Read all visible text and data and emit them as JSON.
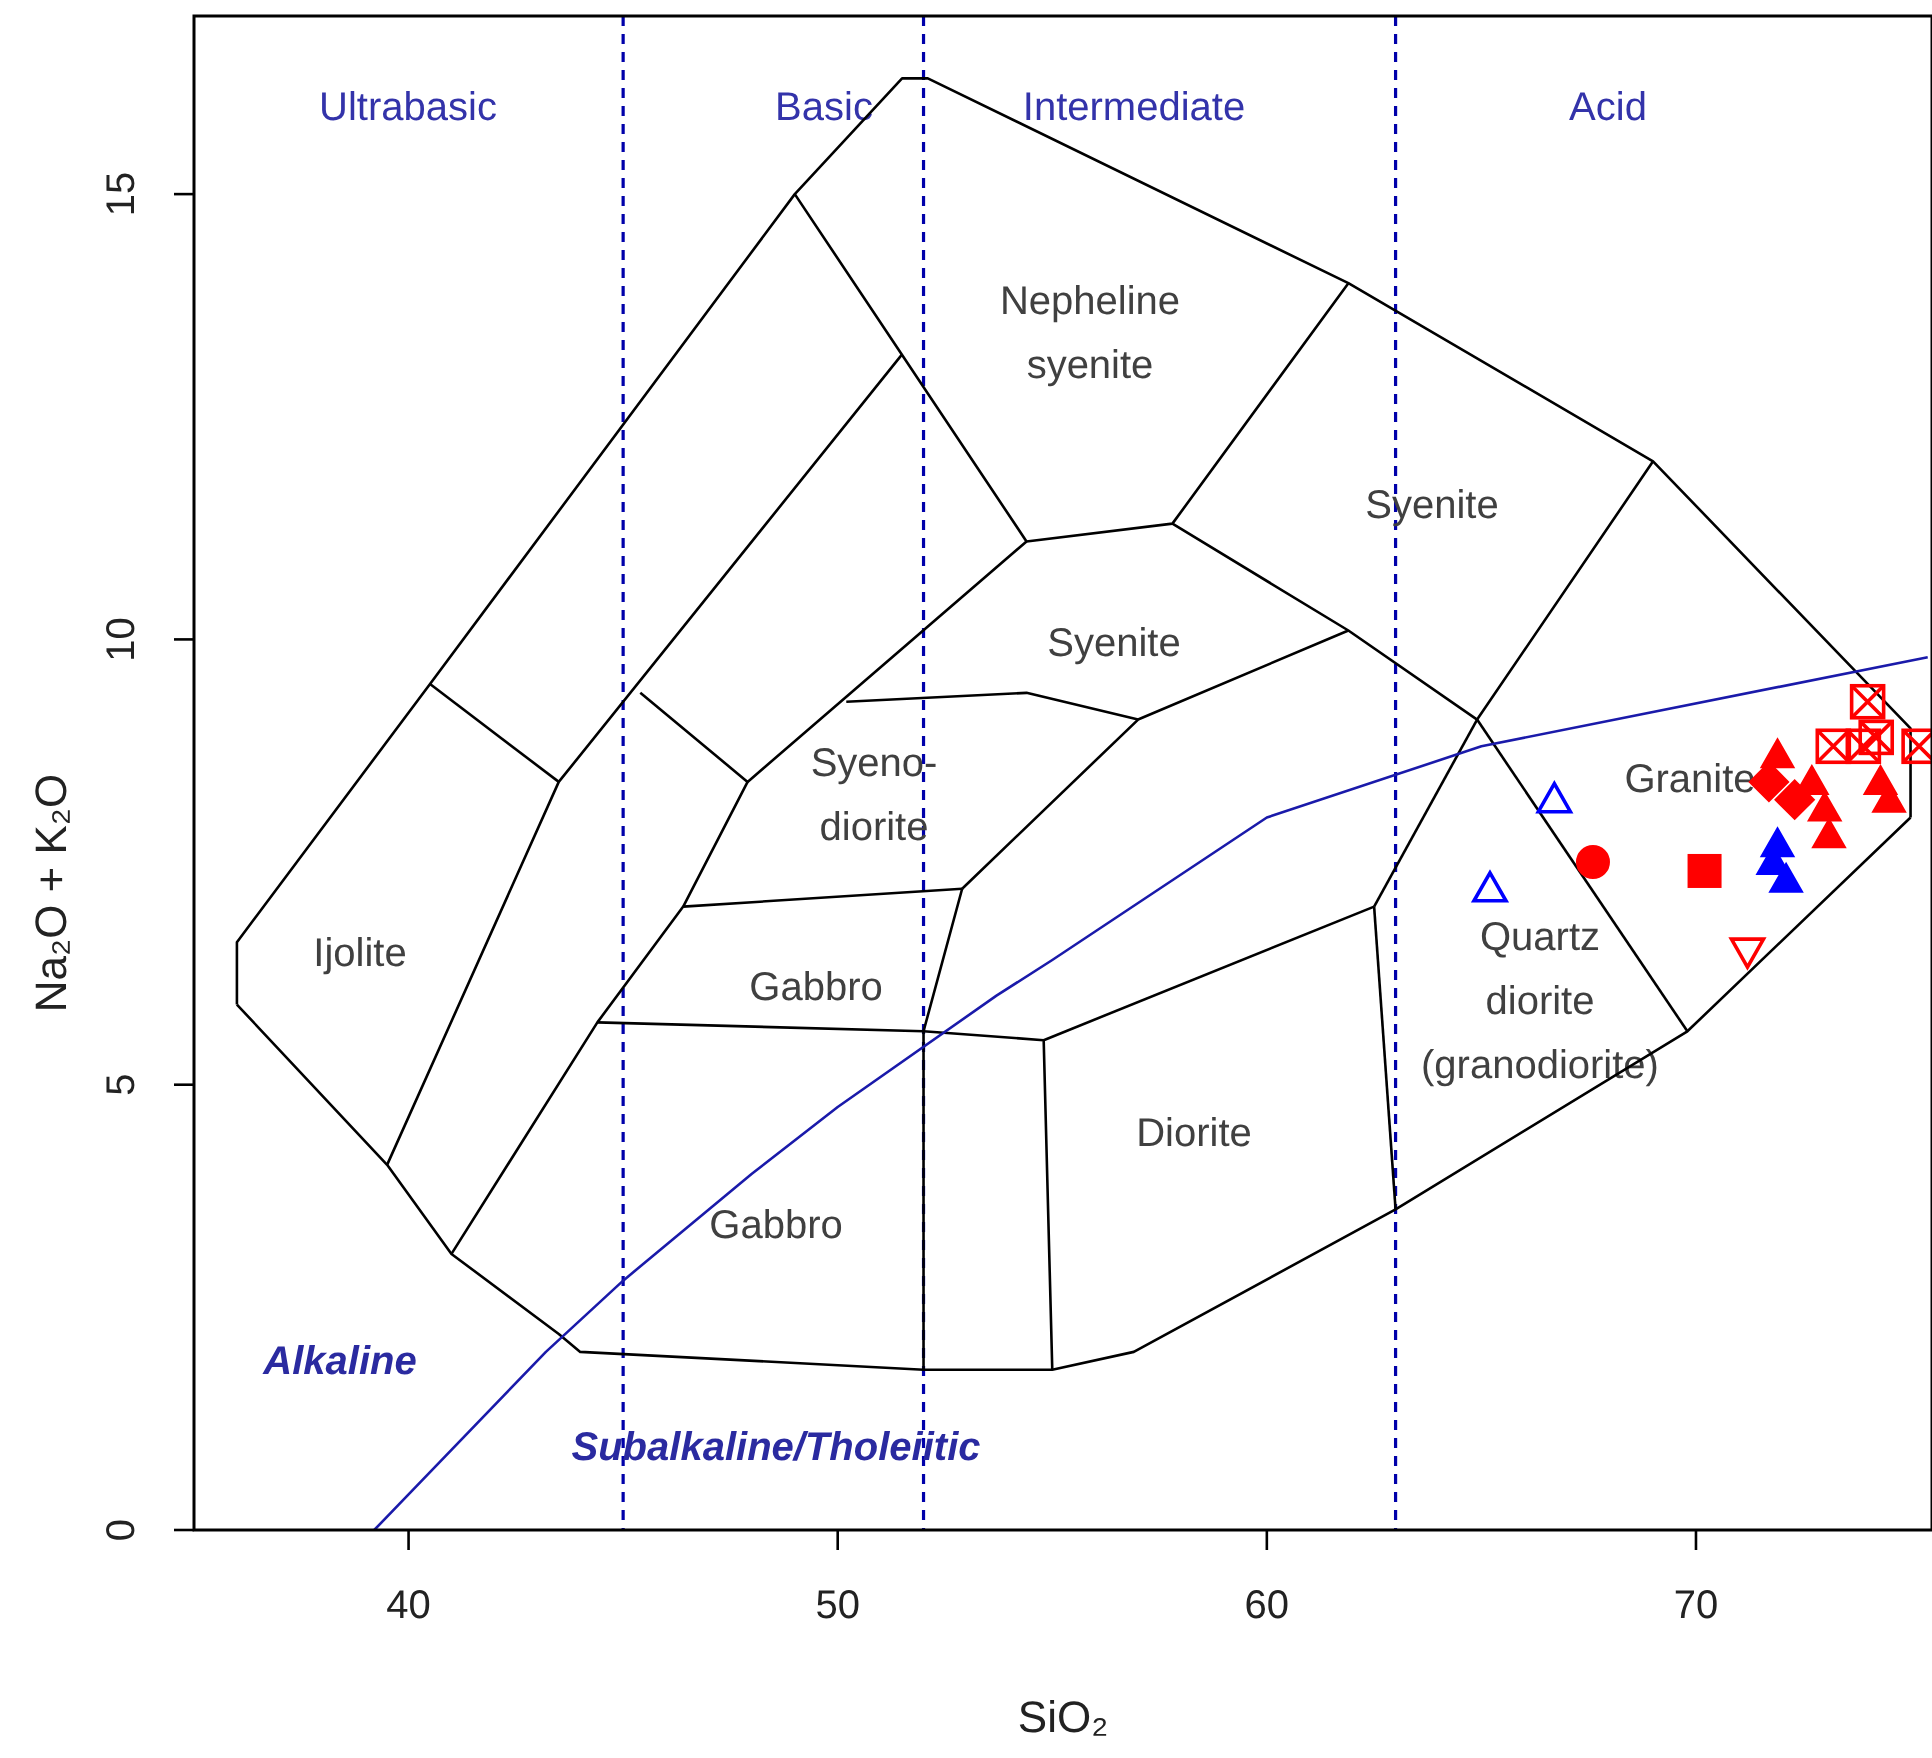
{
  "chart_data": {
    "type": "scatter",
    "xlabel": "SiO₂",
    "ylabel": "Na₂O + K₂O",
    "xlim": [
      35,
      75.5
    ],
    "ylim": [
      0,
      17
    ],
    "xticks": [
      40,
      50,
      60,
      70
    ],
    "yticks": [
      0,
      5,
      10,
      15
    ],
    "ref_lines": [
      {
        "axis": "x",
        "value": 45,
        "color": "#0000aa",
        "line_style": "dashed"
      },
      {
        "axis": "x",
        "value": 52,
        "color": "#0000aa",
        "line_style": "dashed"
      },
      {
        "axis": "x",
        "value": 63,
        "color": "#0000aa",
        "line_style": "dashed"
      }
    ],
    "annotations": [
      "Ultrabasic",
      "Basic",
      "Intermediate",
      "Acid",
      "Nepheline\nsyenite",
      "Syenite",
      "Syenite",
      "Syeno-\ndiorite",
      "Ijolite",
      "Gabbro",
      "Gabbro",
      "Diorite",
      "Quartz\ndiorite\n(granodiorite)",
      "Granite",
      "Alkaline",
      "Subalkaline/Tholeiitic"
    ],
    "series": [
      {
        "type": "line",
        "color": "#000000",
        "x": [
          36,
          36,
          40.5,
          49,
          51.5,
          52.1,
          61.9,
          69,
          75,
          75
        ],
        "values": [
          5.9,
          6.6,
          9.5,
          15,
          16.3,
          16.3,
          14,
          12,
          9,
          8
        ]
      },
      {
        "type": "line",
        "color": "#000000",
        "x": [
          36,
          39.5,
          41,
          43.5,
          44,
          52,
          55,
          56.9,
          63,
          69.8,
          75
        ],
        "values": [
          5.9,
          4.1,
          3.1,
          2.2,
          2.0,
          1.8,
          1.8,
          2.0,
          3.6,
          5.6,
          8
        ]
      },
      {
        "type": "line",
        "color": "#000000",
        "x": [
          40.5,
          43.5
        ],
        "values": [
          9.5,
          8.4
        ]
      },
      {
        "type": "line",
        "color": "#000000",
        "x": [
          39.5,
          43.5,
          51.5
        ],
        "values": [
          4.1,
          8.4,
          13.2
        ]
      },
      {
        "type": "line",
        "color": "#000000",
        "x": [
          49,
          54.4,
          57.8,
          61.9
        ],
        "values": [
          15,
          11.1,
          11.3,
          14
        ]
      },
      {
        "type": "line",
        "color": "#000000",
        "x": [
          57.8,
          61.9,
          64.9,
          69
        ],
        "values": [
          11.3,
          10.1,
          9.1,
          12
        ]
      },
      {
        "type": "line",
        "color": "#000000",
        "x": [
          62.5,
          64.9
        ],
        "values": [
          7.0,
          9.1
        ]
      },
      {
        "type": "line",
        "color": "#000000",
        "x": [
          62.5,
          63
        ],
        "values": [
          7.0,
          3.6
        ]
      },
      {
        "type": "line",
        "color": "#000000",
        "x": [
          64.9,
          69.8
        ],
        "values": [
          9.1,
          5.6
        ]
      },
      {
        "type": "line",
        "color": "#000000",
        "x": [
          45.4,
          47.9,
          54.4
        ],
        "values": [
          9.4,
          8.4,
          11.1
        ]
      },
      {
        "type": "line",
        "color": "#000000",
        "x": [
          41,
          44.4,
          46.4,
          47.9
        ],
        "values": [
          3.1,
          5.7,
          7.0,
          8.4
        ]
      },
      {
        "type": "line",
        "color": "#000000",
        "x": [
          46.4,
          52.9
        ],
        "values": [
          7.0,
          7.2
        ]
      },
      {
        "type": "line",
        "color": "#000000",
        "x": [
          52,
          52,
          52.9
        ],
        "values": [
          1.8,
          5.6,
          7.2
        ]
      },
      {
        "type": "line",
        "color": "#000000",
        "x": [
          44.4,
          52,
          54.8,
          55
        ],
        "values": [
          5.7,
          5.6,
          5.5,
          1.8
        ]
      },
      {
        "type": "line",
        "color": "#000000",
        "x": [
          54.8,
          62.5
        ],
        "values": [
          5.5,
          7.0
        ]
      },
      {
        "type": "line",
        "color": "#000000",
        "x": [
          52.9,
          57,
          61.9
        ],
        "values": [
          7.2,
          9.1,
          10.1
        ]
      },
      {
        "type": "line",
        "color": "#000000",
        "x": [
          50.2,
          54.4,
          57
        ],
        "values": [
          9.3,
          9.4,
          9.1
        ]
      },
      {
        "type": "line",
        "color": "#1a1aaa",
        "x": [
          39.2,
          40,
          43.2,
          45,
          48,
          50,
          53.7,
          55,
          60,
          65,
          75.4
        ],
        "values": [
          0,
          0.4,
          2.0,
          2.8,
          4.0,
          4.75,
          6.0,
          6.4,
          8.0,
          8.8,
          9.8
        ]
      },
      {
        "type": "scatter",
        "marker": "triangle-open",
        "color": "#0000ff",
        "x": [
          66.7,
          65.2
        ],
        "values": [
          8.2,
          7.2
        ]
      },
      {
        "type": "scatter",
        "marker": "circle",
        "color": "#ff0000",
        "x": [
          67.6
        ],
        "values": [
          7.5
        ]
      },
      {
        "type": "scatter",
        "marker": "square",
        "color": "#ff0000",
        "x": [
          70.2
        ],
        "values": [
          7.4
        ]
      },
      {
        "type": "scatter",
        "marker": "triangle-down-open",
        "color": "#ff0000",
        "x": [
          71.2
        ],
        "values": [
          6.5
        ]
      },
      {
        "type": "scatter",
        "marker": "triangle",
        "color": "#0000ff",
        "x": [
          71.9,
          71.8,
          72.1
        ],
        "values": [
          7.7,
          7.5,
          7.3
        ]
      },
      {
        "type": "scatter",
        "marker": "diamond",
        "color": "#ff0000",
        "x": [
          71.7,
          72.3
        ],
        "values": [
          8.4,
          8.2
        ]
      },
      {
        "type": "scatter",
        "marker": "triangle",
        "color": "#ff0000",
        "x": [
          71.9,
          72.7,
          73.0,
          73.1,
          74.3,
          74.5
        ],
        "values": [
          8.7,
          8.4,
          8.1,
          7.8,
          8.4,
          8.2
        ]
      },
      {
        "type": "scatter",
        "marker": "square-cross",
        "color": "#ff0000",
        "x": [
          74.0,
          73.2,
          73.9,
          75.2,
          74.2
        ],
        "values": [
          9.3,
          8.8,
          8.8,
          8.8,
          8.9
        ]
      }
    ]
  }
}
